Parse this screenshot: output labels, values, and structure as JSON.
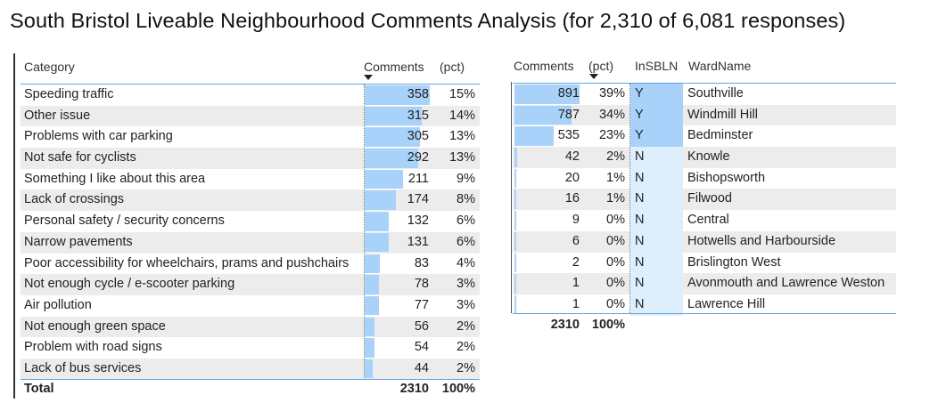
{
  "title": "South Bristol Liveable Neighbourhood Comments Analysis (for 2,310 of 6,081 responses)",
  "colors": {
    "bar": "#a9d2fb",
    "insb_no": "#ddeefd",
    "accent_line": "#5fa5e0",
    "alt_row": "#ececec"
  },
  "category_table": {
    "headers": {
      "category": "Category",
      "comments": "Comments",
      "pct": "(pct)"
    },
    "sorted_by": "Comments",
    "rows": [
      {
        "category": "Speeding traffic",
        "comments": 358,
        "pct": "15%"
      },
      {
        "category": "Other issue",
        "comments": 315,
        "pct": "14%"
      },
      {
        "category": "Problems with car parking",
        "comments": 305,
        "pct": "13%"
      },
      {
        "category": "Not safe for cyclists",
        "comments": 292,
        "pct": "13%"
      },
      {
        "category": "Something I like about this area",
        "comments": 211,
        "pct": "9%"
      },
      {
        "category": "Lack of crossings",
        "comments": 174,
        "pct": "8%"
      },
      {
        "category": "Personal safety / security concerns",
        "comments": 132,
        "pct": "6%"
      },
      {
        "category": "Narrow pavements",
        "comments": 131,
        "pct": "6%"
      },
      {
        "category": "Poor accessibility for wheelchairs, prams and pushchairs",
        "comments": 83,
        "pct": "4%"
      },
      {
        "category": "Not enough cycle / e-scooter parking",
        "comments": 78,
        "pct": "3%"
      },
      {
        "category": "Air pollution",
        "comments": 77,
        "pct": "3%"
      },
      {
        "category": "Not enough green space",
        "comments": 56,
        "pct": "2%"
      },
      {
        "category": "Problem with road signs",
        "comments": 54,
        "pct": "2%"
      },
      {
        "category": "Lack of bus services",
        "comments": 44,
        "pct": "2%"
      }
    ],
    "total": {
      "label": "Total",
      "comments": "2310",
      "pct": "100%"
    }
  },
  "ward_table": {
    "headers": {
      "comments": "Comments",
      "pct": "(pct)",
      "insbln": "InSBLN",
      "wardname": "WardName"
    },
    "sorted_by": "(pct)",
    "rows": [
      {
        "comments": 891,
        "pct": "39%",
        "insbln": "Y",
        "ward": "Southville"
      },
      {
        "comments": 787,
        "pct": "34%",
        "insbln": "Y",
        "ward": "Windmill Hill"
      },
      {
        "comments": 535,
        "pct": "23%",
        "insbln": "Y",
        "ward": "Bedminster"
      },
      {
        "comments": 42,
        "pct": "2%",
        "insbln": "N",
        "ward": "Knowle"
      },
      {
        "comments": 20,
        "pct": "1%",
        "insbln": "N",
        "ward": "Bishopsworth"
      },
      {
        "comments": 16,
        "pct": "1%",
        "insbln": "N",
        "ward": "Filwood"
      },
      {
        "comments": 9,
        "pct": "0%",
        "insbln": "N",
        "ward": "Central"
      },
      {
        "comments": 6,
        "pct": "0%",
        "insbln": "N",
        "ward": "Hotwells and Harbourside"
      },
      {
        "comments": 2,
        "pct": "0%",
        "insbln": "N",
        "ward": "Brislington West"
      },
      {
        "comments": 1,
        "pct": "0%",
        "insbln": "N",
        "ward": "Avonmouth and Lawrence Weston"
      },
      {
        "comments": 1,
        "pct": "0%",
        "insbln": "N",
        "ward": "Lawrence Hill"
      }
    ],
    "total": {
      "comments": "2310",
      "pct": "100%"
    }
  }
}
